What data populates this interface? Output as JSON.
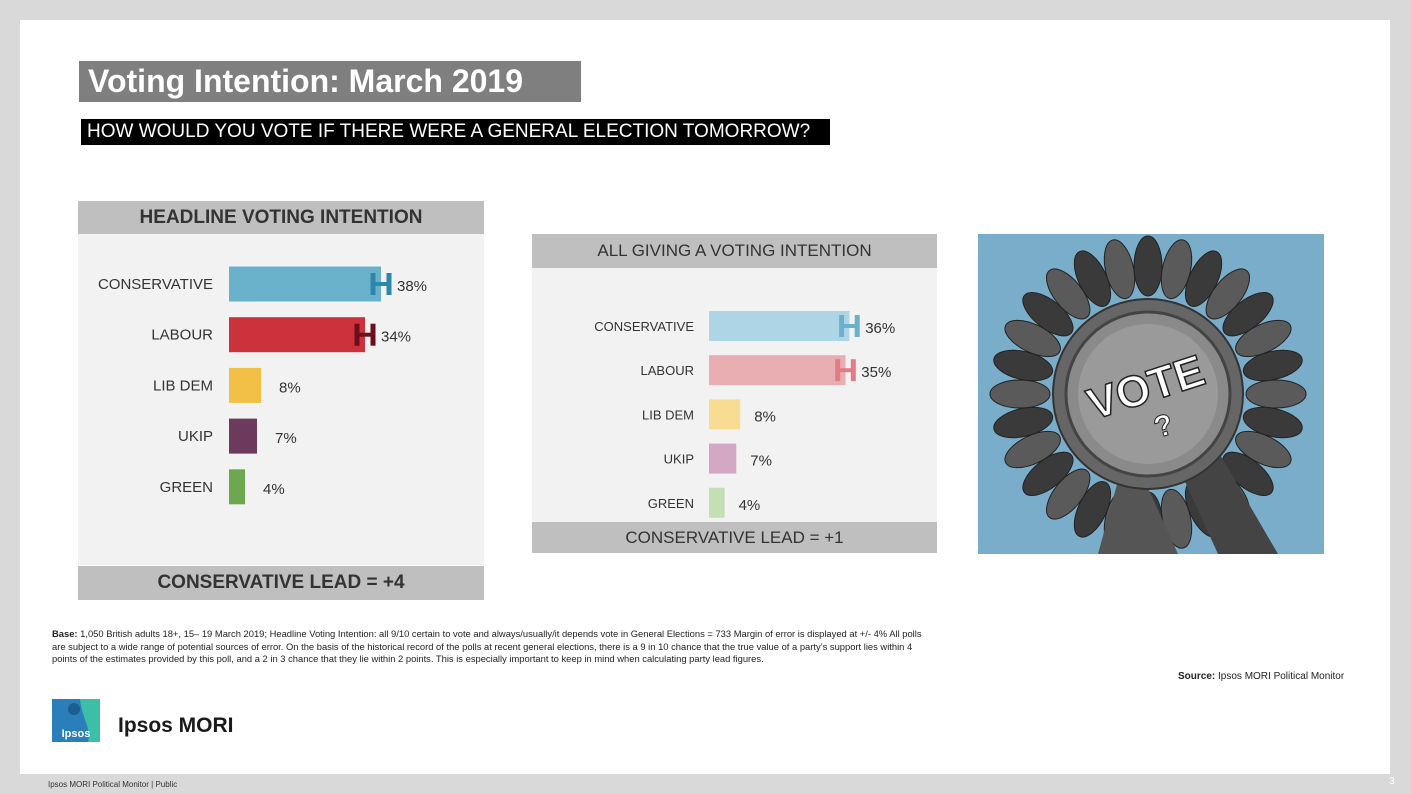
{
  "title": "Voting Intention: March 2019",
  "subtitle": "HOW WOULD YOU VOTE IF THERE WERE A GENERAL ELECTION TOMORROW?",
  "chart_data": [
    {
      "type": "bar",
      "orientation": "horizontal",
      "title": "HEADLINE VOTING INTENTION",
      "categories": [
        "CONSERVATIVE",
        "LABOUR",
        "LIB DEM",
        "UKIP",
        "GREEN"
      ],
      "values": [
        38,
        34,
        8,
        7,
        4
      ],
      "value_labels": [
        "38%",
        "34%",
        "8%",
        "7%",
        "4%"
      ],
      "colors": [
        "#6ab2cc",
        "#cc323b",
        "#f2c046",
        "#6b3a5c",
        "#6ea84e"
      ],
      "error_bar_colors": [
        "#2d86ad",
        "#6b0f1a"
      ],
      "error_margin": 4,
      "footer": "CONSERVATIVE LEAD = +4"
    },
    {
      "type": "bar",
      "orientation": "horizontal",
      "title": "ALL GIVING A VOTING INTENTION",
      "categories": [
        "CONSERVATIVE",
        "LABOUR",
        "LIB DEM",
        "UKIP",
        "GREEN"
      ],
      "values": [
        36,
        35,
        8,
        7,
        4
      ],
      "value_labels": [
        "36%",
        "35%",
        "8%",
        "7%",
        "4%"
      ],
      "colors": [
        "#aed5e6",
        "#e9aeb1",
        "#f7dc92",
        "#d4a7c5",
        "#c4dfb3"
      ],
      "error_bar_colors": [
        "#6ab2cc",
        "#e07d84"
      ],
      "error_margin": 4,
      "footer": "CONSERVATIVE LEAD = +1"
    }
  ],
  "image": {
    "badge_text": "VOTE",
    "badge_mark": "?"
  },
  "notes": {
    "base_label": "Base:",
    "base_text": " 1,050 British adults 18+, 15– 19 March 2019; Headline Voting Intention:  all  9/10 certain to vote and always/usually/it depends vote in General Elections = 733 Margin of error is displayed at +/- 4% All polls are subject to a wide range of potential sources of error. On the basis of the historical record of the polls at recent general elections, there is a 9 in 10 chance that the true value of a party’s support lies within 4 points of the estimates provided by this poll, and a 2 in 3 chance that they lie within 2 points. This is especially important to keep in mind when calculating party lead figures.",
    "source_label": "Source:",
    "source_text": " Ipsos MORI Political Monitor"
  },
  "logo": {
    "mark_text": "Ipsos",
    "name": "Ipsos MORI"
  },
  "footer": {
    "text": "Ipsos  MORI  Political  Monitor  |  Public",
    "page_number": "3"
  },
  "colors": {
    "title_bg": "#7f7f7f",
    "panel_header_bg": "#bfbfbf",
    "panel_bg": "#f2f2f2",
    "photo_bg": "#7aadc9",
    "logo_blue": "#2a7fba"
  }
}
